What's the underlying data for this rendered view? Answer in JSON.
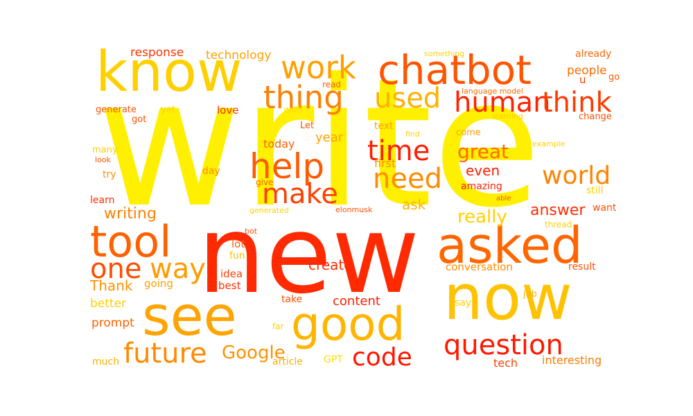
{
  "word_cloud": {
    "words": [
      {
        "text": "write",
        "color": "#FFEF00"
      },
      {
        "text": "new",
        "color": "#FF2A00"
      },
      {
        "text": "know",
        "color": "#FFD000"
      },
      {
        "text": "chatbot",
        "color": "#FF5500"
      },
      {
        "text": "work",
        "color": "#FFA000"
      },
      {
        "text": "thing",
        "color": "#FF8000"
      },
      {
        "text": "used",
        "color": "#FFB000"
      },
      {
        "text": "human",
        "color": "#FF2200"
      },
      {
        "text": "think",
        "color": "#FF3A00"
      },
      {
        "text": "help",
        "color": "#FF5A00"
      },
      {
        "text": "time",
        "color": "#FF1E00"
      },
      {
        "text": "need",
        "color": "#FF8C00"
      },
      {
        "text": "great",
        "color": "#FF6A00"
      },
      {
        "text": "world",
        "color": "#FF8200"
      },
      {
        "text": "make",
        "color": "#FF3F00"
      },
      {
        "text": "tool",
        "color": "#FF6000"
      },
      {
        "text": "asked",
        "color": "#FF6600"
      },
      {
        "text": "one",
        "color": "#FF4C00"
      },
      {
        "text": "way",
        "color": "#FF9B00"
      },
      {
        "text": "see",
        "color": "#FFA400"
      },
      {
        "text": "good",
        "color": "#FFB500"
      },
      {
        "text": "now",
        "color": "#FFC200"
      },
      {
        "text": "future",
        "color": "#FF8A00"
      },
      {
        "text": "Google",
        "color": "#FF9100"
      },
      {
        "text": "code",
        "color": "#FF1500"
      },
      {
        "text": "question",
        "color": "#FF1800"
      },
      {
        "text": "response",
        "color": "#FF3300"
      },
      {
        "text": "technology",
        "color": "#FFA000"
      },
      {
        "text": "something",
        "color": "#FFD000"
      },
      {
        "text": "already",
        "color": "#FF6600"
      },
      {
        "text": "people",
        "color": "#FF6A00"
      },
      {
        "text": "u",
        "color": "#FF3A00"
      },
      {
        "text": "go",
        "color": "#FF5A00"
      },
      {
        "text": "language model",
        "color": "#FF6A00"
      },
      {
        "text": "read",
        "color": "#FF5A00"
      },
      {
        "text": "love",
        "color": "#FF2A00"
      },
      {
        "text": "generate",
        "color": "#FF5000"
      },
      {
        "text": "yet",
        "color": "#FFD000"
      },
      {
        "text": "got",
        "color": "#FF5000"
      },
      {
        "text": "well",
        "color": "#FFE000"
      },
      {
        "text": "Let",
        "color": "#FF5000"
      },
      {
        "text": "text",
        "color": "#FFA000"
      },
      {
        "text": "find",
        "color": "#FFD000"
      },
      {
        "text": "come",
        "color": "#FFA000"
      },
      {
        "text": "learning",
        "color": "#FFD000"
      },
      {
        "text": "change",
        "color": "#FF5000"
      },
      {
        "text": "example",
        "color": "#FFD000"
      },
      {
        "text": "today",
        "color": "#FF6000"
      },
      {
        "text": "year",
        "color": "#FFA000"
      },
      {
        "text": "first",
        "color": "#FF8C00"
      },
      {
        "text": "many",
        "color": "#FFD000"
      },
      {
        "text": "look",
        "color": "#FF5000"
      },
      {
        "text": "try",
        "color": "#FF9000"
      },
      {
        "text": "day",
        "color": "#FF8C00"
      },
      {
        "text": "even",
        "color": "#FF1E00"
      },
      {
        "text": "amazing",
        "color": "#FF1E00"
      },
      {
        "text": "still",
        "color": "#FFD000"
      },
      {
        "text": "give",
        "color": "#FF6000"
      },
      {
        "text": "learn",
        "color": "#FF2A00"
      },
      {
        "text": "able",
        "color": "#FF5000"
      },
      {
        "text": "writing",
        "color": "#FF8000"
      },
      {
        "text": "generated",
        "color": "#FFD000"
      },
      {
        "text": "elonmusk",
        "color": "#FF5000"
      },
      {
        "text": "ask",
        "color": "#FFB000"
      },
      {
        "text": "answer",
        "color": "#FF2A00"
      },
      {
        "text": "want",
        "color": "#FF5000"
      },
      {
        "text": "really",
        "color": "#FFD000"
      },
      {
        "text": "thread",
        "color": "#FFD000"
      },
      {
        "text": "bot",
        "color": "#FF5000"
      },
      {
        "text": "lot",
        "color": "#FF6000"
      },
      {
        "text": "fun",
        "color": "#FFC000"
      },
      {
        "text": "create",
        "color": "#FF2A00"
      },
      {
        "text": "idea",
        "color": "#FF4000"
      },
      {
        "text": "conversation",
        "color": "#FF8C00"
      },
      {
        "text": "result",
        "color": "#FF5000"
      },
      {
        "text": "Thank",
        "color": "#FF9000"
      },
      {
        "text": "going",
        "color": "#FFA000"
      },
      {
        "text": "best",
        "color": "#FF3000"
      },
      {
        "text": "job",
        "color": "#FFB000"
      },
      {
        "text": "take",
        "color": "#FF5000"
      },
      {
        "text": "content",
        "color": "#FF1E00"
      },
      {
        "text": "better",
        "color": "#FFD000"
      },
      {
        "text": "say",
        "color": "#FFD000"
      },
      {
        "text": "prompt",
        "color": "#FF6000"
      },
      {
        "text": "far",
        "color": "#FFD000"
      },
      {
        "text": "much",
        "color": "#FFB000"
      },
      {
        "text": "article",
        "color": "#FFB000"
      },
      {
        "text": "GPT",
        "color": "#FFE000"
      },
      {
        "text": "tech",
        "color": "#FF4000"
      },
      {
        "text": "interesting",
        "color": "#FF7A00"
      }
    ]
  }
}
